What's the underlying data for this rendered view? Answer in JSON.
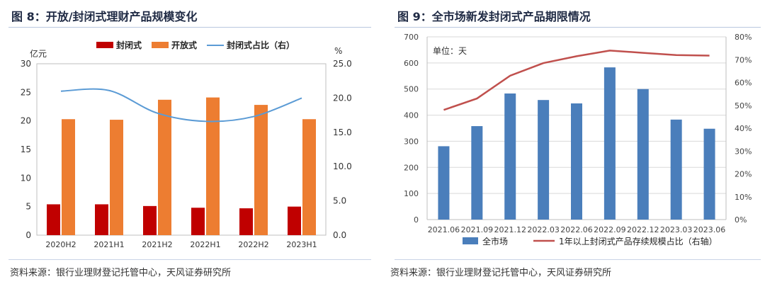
{
  "left": {
    "title": "图 8：开放/封闭式理财产品规模变化",
    "source": "资料来源：银行业理财登记托管中心，天风证券研究所",
    "colors": {
      "closed": "#c00000",
      "open": "#ed7d31",
      "ratio": "#5b9bd5"
    },
    "chart_data": {
      "type": "bar",
      "categories": [
        "2020H2",
        "2021H1",
        "2021H2",
        "2022H1",
        "2022H2",
        "2023H1"
      ],
      "series": [
        {
          "name": "封闭式",
          "values": [
            5.4,
            5.4,
            5.1,
            4.8,
            4.7,
            5.0
          ]
        },
        {
          "name": "开放式",
          "values": [
            20.3,
            20.2,
            23.7,
            24.1,
            22.8,
            20.3
          ]
        },
        {
          "name": "封闭式占比（右）",
          "axis": "right",
          "values": [
            21.0,
            21.1,
            17.8,
            16.6,
            17.3,
            20.0
          ]
        }
      ],
      "ylabel_left": "亿元",
      "ylabel_right": "%",
      "ylim_left": [
        0,
        30
      ],
      "ylim_right": [
        0,
        25
      ],
      "yticks_left": [
        "0",
        "5",
        "10",
        "15",
        "20",
        "25",
        "30"
      ],
      "yticks_right": [
        "0.0",
        "5.0",
        "10.0",
        "15.0",
        "20.0",
        "25.0"
      ],
      "legend_position": "top"
    }
  },
  "right": {
    "title": "图 9：全市场新发封闭式产品期限情况",
    "source": "资料来源：银行业理财登记托管中心，天风证券研究所",
    "colors": {
      "bar": "#4a7ebb",
      "line": "#c0504d"
    },
    "chart_data": {
      "type": "bar",
      "categories": [
        "2021.06",
        "2021.09",
        "2021.12",
        "2022.03",
        "2022.06",
        "2022.09",
        "2022.12",
        "2023.03",
        "2023.06"
      ],
      "series": [
        {
          "name": "全市场",
          "values": [
            281,
            358,
            483,
            458,
            445,
            583,
            500,
            383,
            348
          ]
        },
        {
          "name": "1年以上封闭式产品存续规模占比（右轴）",
          "axis": "right",
          "values": [
            48,
            53,
            63,
            68.5,
            71.5,
            74,
            73,
            72,
            71.8
          ]
        }
      ],
      "annotation": "单位：天",
      "ylim_left": [
        0,
        700
      ],
      "ylim_right": [
        0,
        80
      ],
      "yticks_left": [
        "0",
        "100",
        "200",
        "300",
        "400",
        "500",
        "600",
        "700"
      ],
      "yticks_right": [
        "0%",
        "10%",
        "20%",
        "30%",
        "40%",
        "50%",
        "60%",
        "70%",
        "80%"
      ],
      "legend_position": "bottom"
    }
  }
}
